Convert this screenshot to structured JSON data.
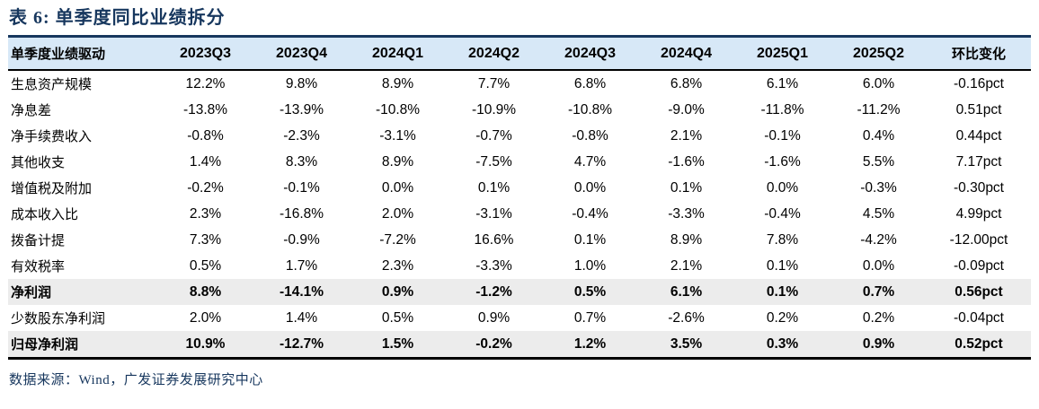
{
  "title": "表 6: 单季度同比业绩拆分",
  "table": {
    "columns": [
      "单季度业绩驱动",
      "2023Q3",
      "2023Q4",
      "2024Q1",
      "2024Q2",
      "2024Q3",
      "2024Q4",
      "2025Q1",
      "2025Q2",
      "环比变化"
    ],
    "rows": [
      {
        "label": "生息资产规模",
        "values": [
          "12.2%",
          "9.8%",
          "8.9%",
          "7.7%",
          "6.8%",
          "6.8%",
          "6.1%",
          "6.0%",
          "-0.16pct"
        ],
        "highlight": false
      },
      {
        "label": "净息差",
        "values": [
          "-13.8%",
          "-13.9%",
          "-10.8%",
          "-10.9%",
          "-10.8%",
          "-9.0%",
          "-11.8%",
          "-11.2%",
          "0.51pct"
        ],
        "highlight": false
      },
      {
        "label": "净手续费收入",
        "values": [
          "-0.8%",
          "-2.3%",
          "-3.1%",
          "-0.7%",
          "-0.8%",
          "2.1%",
          "-0.1%",
          "0.4%",
          "0.44pct"
        ],
        "highlight": false
      },
      {
        "label": "其他收支",
        "values": [
          "1.4%",
          "8.3%",
          "8.9%",
          "-7.5%",
          "4.7%",
          "-1.6%",
          "-1.6%",
          "5.5%",
          "7.17pct"
        ],
        "highlight": false
      },
      {
        "label": "增值税及附加",
        "values": [
          "-0.2%",
          "-0.1%",
          "0.0%",
          "0.1%",
          "0.0%",
          "0.1%",
          "0.0%",
          "-0.3%",
          "-0.30pct"
        ],
        "highlight": false
      },
      {
        "label": "成本收入比",
        "values": [
          "2.3%",
          "-16.8%",
          "2.0%",
          "-3.1%",
          "-0.4%",
          "-3.3%",
          "-0.4%",
          "4.5%",
          "4.99pct"
        ],
        "highlight": false
      },
      {
        "label": "拨备计提",
        "values": [
          "7.3%",
          "-0.9%",
          "-7.2%",
          "16.6%",
          "0.1%",
          "8.9%",
          "7.8%",
          "-4.2%",
          "-12.00pct"
        ],
        "highlight": false
      },
      {
        "label": "有效税率",
        "values": [
          "0.5%",
          "1.7%",
          "2.3%",
          "-3.3%",
          "1.0%",
          "2.1%",
          "0.1%",
          "0.0%",
          "-0.09pct"
        ],
        "highlight": false
      },
      {
        "label": "净利润",
        "values": [
          "8.8%",
          "-14.1%",
          "0.9%",
          "-1.2%",
          "0.5%",
          "6.1%",
          "0.1%",
          "0.7%",
          "0.56pct"
        ],
        "highlight": true
      },
      {
        "label": "少数股东净利润",
        "values": [
          "2.0%",
          "1.4%",
          "0.5%",
          "0.9%",
          "0.7%",
          "-2.6%",
          "0.2%",
          "0.2%",
          "-0.04pct"
        ],
        "highlight": false
      },
      {
        "label": "归母净利润",
        "values": [
          "10.9%",
          "-12.7%",
          "1.5%",
          "-0.2%",
          "1.2%",
          "3.5%",
          "0.3%",
          "0.9%",
          "0.52pct"
        ],
        "highlight": true
      }
    ]
  },
  "footer": {
    "source": "数据来源：Wind，广发证券发展研究中心"
  },
  "colors": {
    "title_navy": "#17375E",
    "header_bg": "#D7E8F7",
    "highlight_bg": "#ECECEC",
    "border_black": "#000000"
  }
}
